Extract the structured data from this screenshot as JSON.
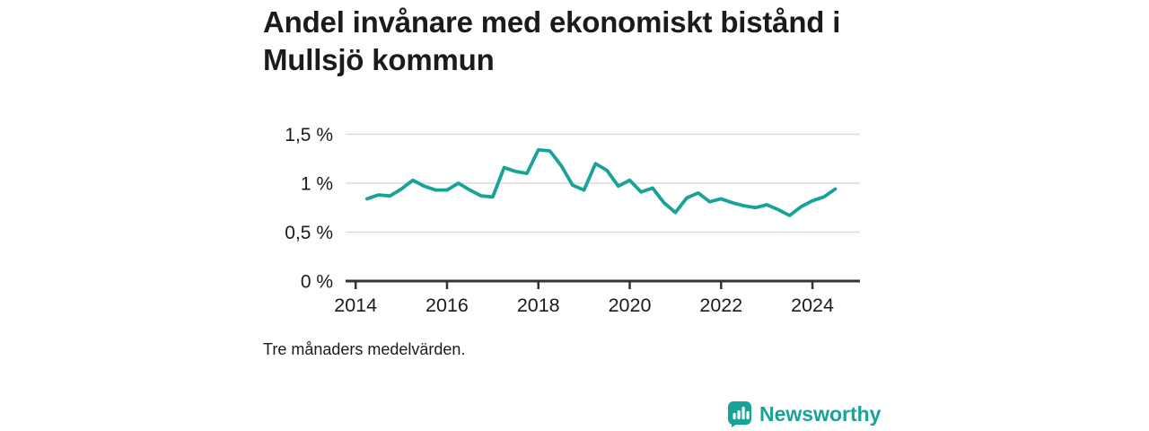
{
  "title": "Andel invånare med ekonomiskt bistånd i Mullsjö kommun",
  "caption": "Tre månaders medelvärden.",
  "branding": {
    "logo_text": "Newsworthy",
    "logo_icon": "bar-chart-bubble-icon",
    "brand_color": "#17a398"
  },
  "chart_data": {
    "type": "line",
    "title": "Andel invånare med ekonomiskt bistånd i Mullsjö kommun",
    "xlabel": "",
    "ylabel": "",
    "xlim": [
      2013.78,
      2025.04
    ],
    "ylim": [
      0,
      1.5
    ],
    "grid": true,
    "legend": "none",
    "line_color": "#17a398",
    "grid_color": "#dbdbdb",
    "axis_color": "#333333",
    "text_color": "#1b1b1b",
    "x_ticks": [
      {
        "value": 2014,
        "label": "2014"
      },
      {
        "value": 2016,
        "label": "2016"
      },
      {
        "value": 2018,
        "label": "2018"
      },
      {
        "value": 2020,
        "label": "2020"
      },
      {
        "value": 2022,
        "label": "2022"
      },
      {
        "value": 2024,
        "label": "2024"
      }
    ],
    "y_ticks": [
      {
        "value": 0,
        "label": "0 %"
      },
      {
        "value": 0.5,
        "label": "0,5 %"
      },
      {
        "value": 1,
        "label": "1 %"
      },
      {
        "value": 1.5,
        "label": "1,5 %"
      }
    ],
    "series": [
      {
        "name": "Andel invånare med ekonomiskt bistånd (%)",
        "x": [
          2014.25,
          2014.5,
          2014.75,
          2015.0,
          2015.25,
          2015.5,
          2015.75,
          2016.0,
          2016.25,
          2016.5,
          2016.75,
          2017.0,
          2017.25,
          2017.5,
          2017.75,
          2018.0,
          2018.25,
          2018.5,
          2018.75,
          2019.0,
          2019.25,
          2019.5,
          2019.75,
          2020.0,
          2020.25,
          2020.5,
          2020.75,
          2021.0,
          2021.25,
          2021.5,
          2021.75,
          2022.0,
          2022.25,
          2022.5,
          2022.75,
          2023.0,
          2023.25,
          2023.5,
          2023.75,
          2024.0,
          2024.25,
          2024.5
        ],
        "values": [
          0.84,
          0.88,
          0.87,
          0.94,
          1.03,
          0.97,
          0.93,
          0.93,
          1.0,
          0.93,
          0.87,
          0.86,
          1.16,
          1.12,
          1.1,
          1.34,
          1.33,
          1.18,
          0.98,
          0.93,
          1.2,
          1.13,
          0.97,
          1.03,
          0.91,
          0.95,
          0.8,
          0.7,
          0.85,
          0.9,
          0.81,
          0.84,
          0.8,
          0.77,
          0.75,
          0.78,
          0.73,
          0.67,
          0.76,
          0.82,
          0.86,
          0.94
        ]
      }
    ]
  }
}
